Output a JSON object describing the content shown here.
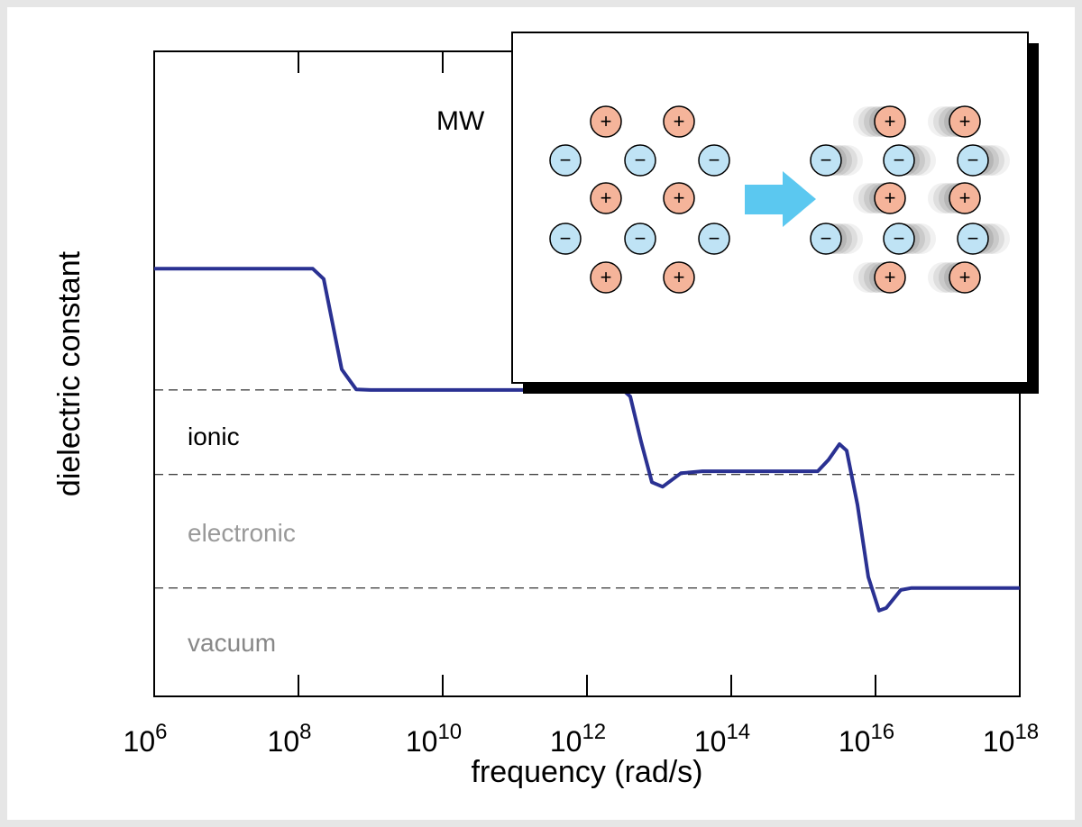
{
  "chart_data": {
    "type": "line",
    "xlabel": "frequency (rad/s)",
    "ylabel": "dielectric constant",
    "x_log_scale": true,
    "xlim": [
      1000000.0,
      1e+18
    ],
    "xticks": [
      {
        "value": 1000000.0,
        "label": "10",
        "exponent": "6"
      },
      {
        "value": 100000000.0,
        "label": "10",
        "exponent": "8"
      },
      {
        "value": 10000000000.0,
        "label": "10",
        "exponent": "10"
      },
      {
        "value": 1000000000000.0,
        "label": "10",
        "exponent": "12"
      },
      {
        "value": 100000000000000.0,
        "label": "10",
        "exponent": "14"
      },
      {
        "value": 1e+16,
        "label": "10",
        "exponent": "16"
      },
      {
        "value": 1e+18,
        "label": "10",
        "exponent": "18"
      }
    ],
    "ylim": [
      0,
      10
    ],
    "x": [
      1000000.0,
      100000000.0,
      158000000.0,
      224000000.0,
      316000000.0,
      398000000.0,
      631000000.0,
      1000000000.0,
      3160000000000.0,
      3980000000000.0,
      5620000000000.0,
      7940000000000.0,
      11200000000000.0,
      20000000000000.0,
      39800000000000.0,
      1580000000000000.0,
      2240000000000000.0,
      3160000000000000.0,
      3980000000000000.0,
      5620000000000000.0,
      7940000000000000.0,
      1.12e+16,
      1.41e+16,
      2.24e+16,
      3.16e+16,
      1e+18
    ],
    "series": [
      {
        "color": "#2a3192",
        "values": [
          6.63,
          6.63,
          6.63,
          6.47,
          5.63,
          5.07,
          4.76,
          4.75,
          4.75,
          4.65,
          3.95,
          3.32,
          3.25,
          3.46,
          3.49,
          3.49,
          3.67,
          3.91,
          3.81,
          2.97,
          1.85,
          1.33,
          1.37,
          1.65,
          1.68,
          1.68
        ]
      }
    ],
    "reference_lines": [
      4.75,
      3.44,
      1.68
    ],
    "annotations": [
      {
        "text": "MW",
        "color": "#000000"
      },
      {
        "text": "ionic",
        "color": "#000000"
      },
      {
        "text": "electronic",
        "color": "#999999"
      },
      {
        "text": "vacuum",
        "color": "#888888"
      }
    ]
  },
  "inset": {
    "plus": "+",
    "minus": "−"
  }
}
